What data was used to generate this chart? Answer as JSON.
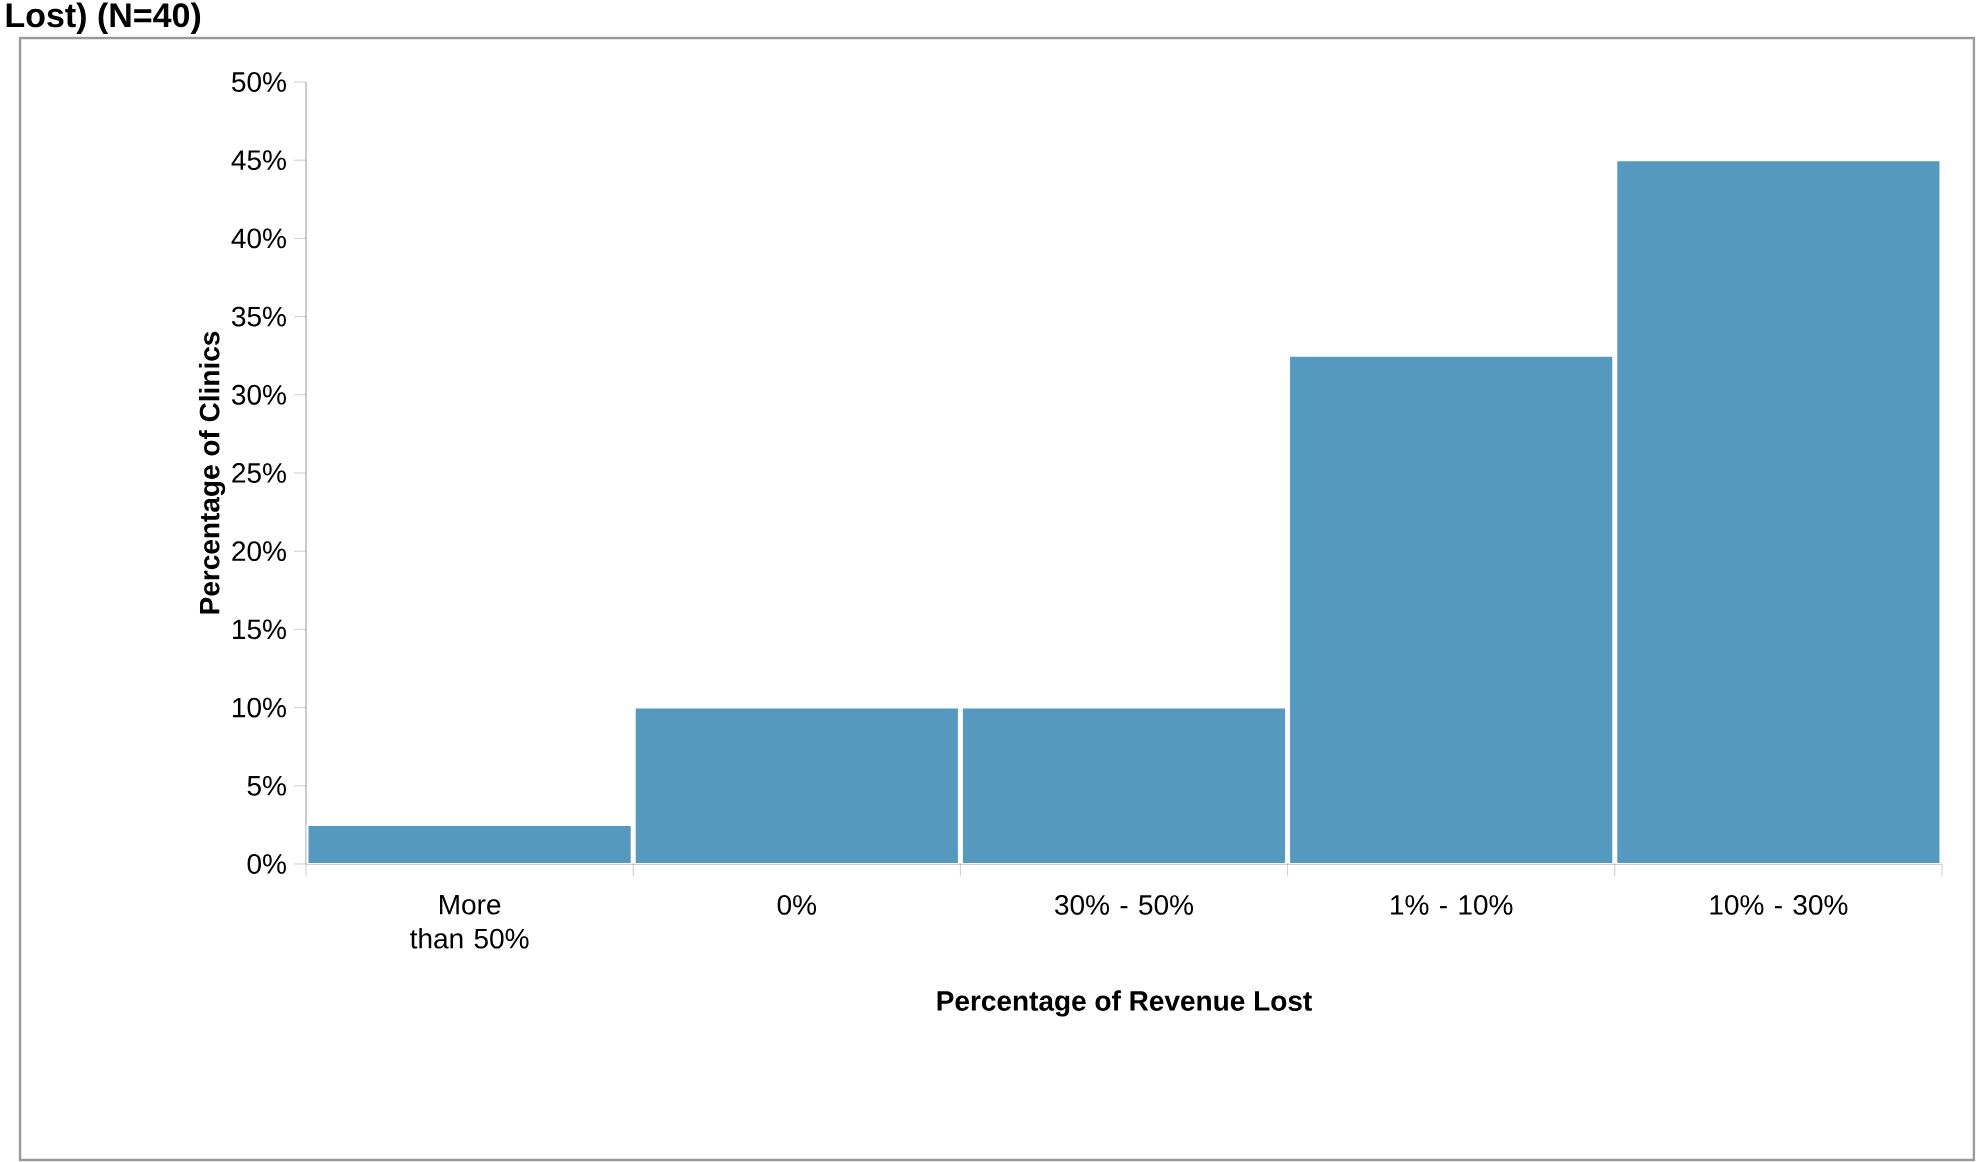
{
  "chart_data": {
    "type": "bar",
    "title": "Lost) (N=40)",
    "xlabel": "Percentage of Revenue Lost",
    "ylabel": "Percentage of Clinics",
    "categories": [
      "More than 50%",
      "0%",
      "30% - 50%",
      "1% - 10%",
      "10% - 30%"
    ],
    "values": [
      2.5,
      10,
      10,
      32.5,
      45
    ],
    "color": "#5599bf",
    "ylim": [
      0,
      50
    ],
    "yticks": [
      {
        "value": 0,
        "label": "0%"
      },
      {
        "value": 5,
        "label": "5%"
      },
      {
        "value": 10,
        "label": "10%"
      },
      {
        "value": 15,
        "label": "15%"
      },
      {
        "value": 20,
        "label": "20%"
      },
      {
        "value": 25,
        "label": "25%"
      },
      {
        "value": 30,
        "label": "30%"
      },
      {
        "value": 35,
        "label": "35%"
      },
      {
        "value": 40,
        "label": "40%"
      },
      {
        "value": 45,
        "label": "45%"
      },
      {
        "value": 50,
        "label": "50%"
      }
    ],
    "grid": false
  }
}
